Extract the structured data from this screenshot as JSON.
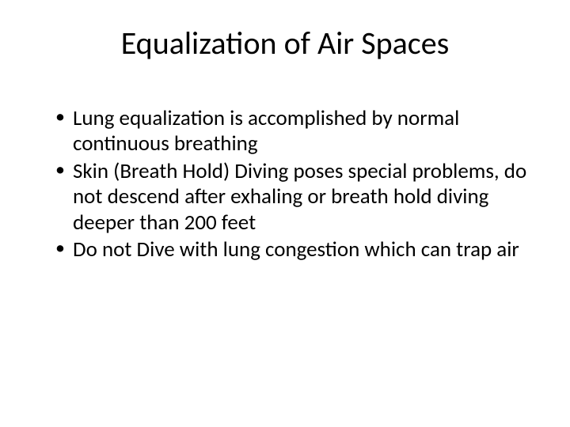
{
  "slide": {
    "title": "Equalization of Air Spaces",
    "bullets": [
      "Lung equalization is accomplished by normal continuous breathing",
      "Skin (Breath Hold) Diving poses special problems, do not descend after exhaling or breath hold diving deeper than 200 feet",
      "Do not Dive with lung congestion which can trap air"
    ]
  },
  "styling": {
    "background_color": "#ffffff",
    "text_color": "#000000",
    "title_fontsize": 40,
    "title_weight": 400,
    "body_fontsize": 27,
    "font_family": "Calibri",
    "slide_width": 720,
    "slide_height": 540,
    "bullet_char": "•"
  }
}
